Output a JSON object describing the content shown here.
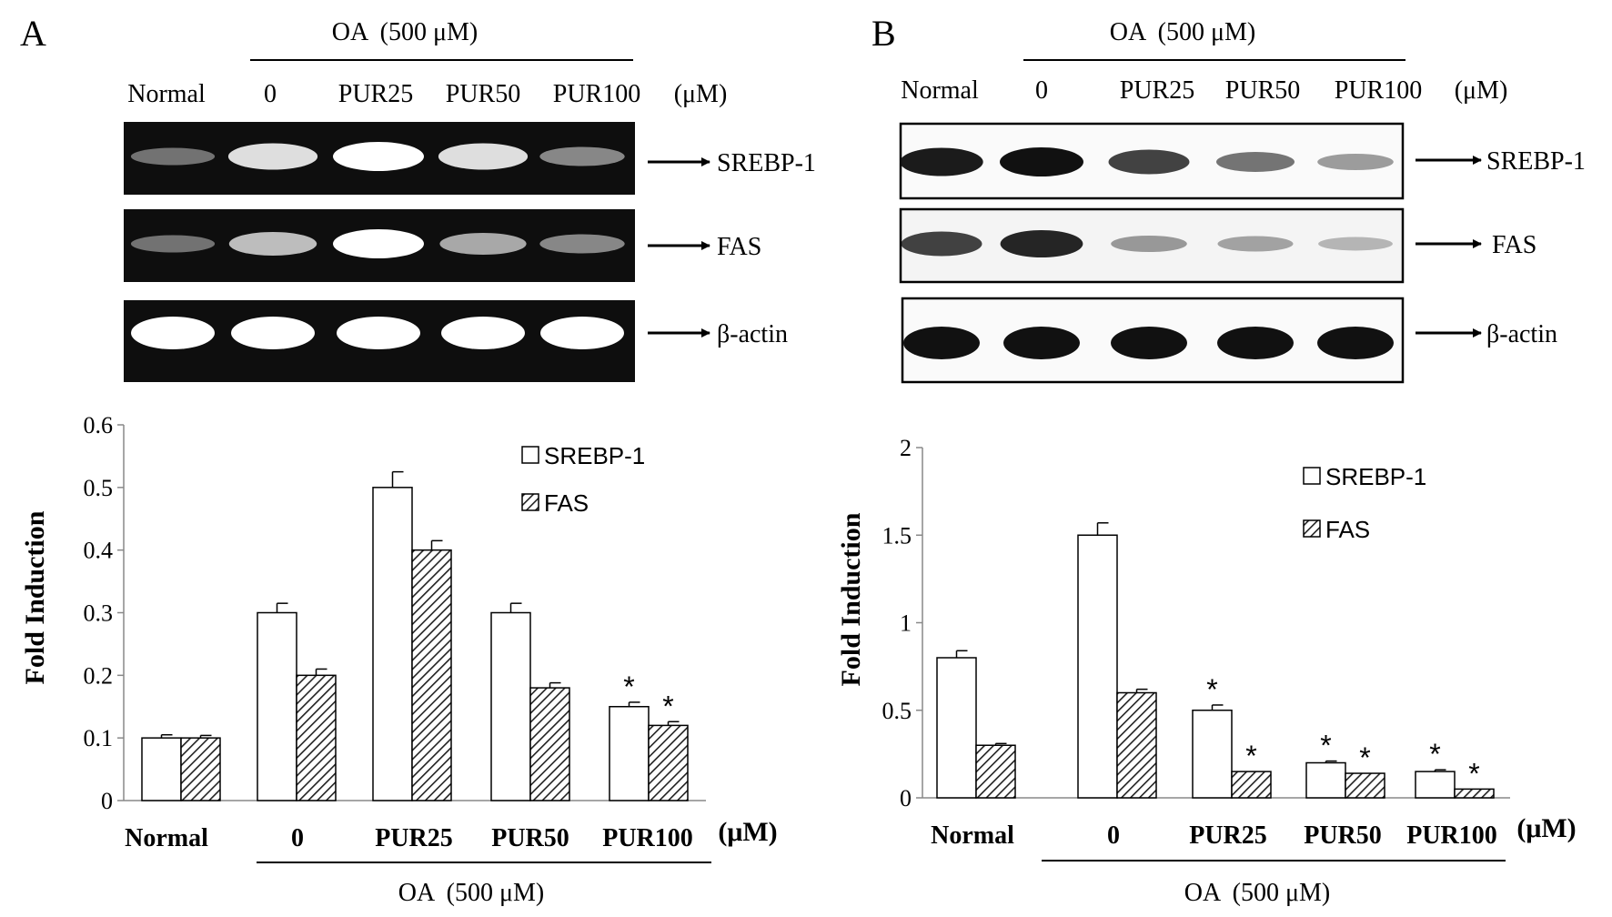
{
  "panels": [
    {
      "letter": "A",
      "treatment_label": "OA  (500 μM)",
      "blot_lane_labels": [
        "Normal",
        "0",
        "PUR25",
        "PUR50",
        "PUR100"
      ],
      "unit_label": "(μM)",
      "blot_bands": [
        "SREBP-1",
        "FAS",
        "β-actin"
      ],
      "band_intensity": {
        "SREBP-1": [
          0.35,
          0.85,
          1.0,
          0.85,
          0.45
        ],
        "FAS": [
          0.35,
          0.7,
          1.0,
          0.6,
          0.45
        ],
        "β-actin": [
          1.0,
          1.0,
          1.0,
          1.0,
          1.0
        ]
      },
      "legend_items": [
        "SREBP-1",
        "FAS"
      ]
    },
    {
      "letter": "B",
      "treatment_label": "OA  (500 μM)",
      "blot_lane_labels": [
        "Normal",
        "0",
        "PUR25",
        "PUR50",
        "PUR100"
      ],
      "unit_label": "(μM)",
      "blot_bands": [
        "SREBP-1",
        "FAS",
        "β-actin"
      ],
      "band_intensity": {
        "SREBP-1": [
          0.95,
          1.0,
          0.75,
          0.5,
          0.3
        ],
        "FAS": [
          0.75,
          0.9,
          0.3,
          0.25,
          0.15
        ],
        "β-actin": [
          1.0,
          1.0,
          1.0,
          1.0,
          1.0
        ]
      },
      "legend_items": [
        "SREBP-1",
        "FAS"
      ]
    }
  ],
  "chart_data": [
    {
      "type": "bar",
      "panel": "A",
      "categories": [
        "Normal",
        "0",
        "PUR25",
        "PUR50",
        "PUR100"
      ],
      "series": [
        {
          "name": "SREBP-1",
          "values": [
            0.1,
            0.3,
            0.5,
            0.3,
            0.15
          ],
          "errors": [
            0.005,
            0.015,
            0.025,
            0.015,
            0.007
          ],
          "significant": [
            false,
            false,
            false,
            false,
            true
          ],
          "fill": "#ffffff"
        },
        {
          "name": "FAS",
          "values": [
            0.1,
            0.2,
            0.4,
            0.18,
            0.12
          ],
          "errors": [
            0.004,
            0.01,
            0.015,
            0.008,
            0.006
          ],
          "significant": [
            false,
            false,
            false,
            false,
            true
          ],
          "fill": "hatch"
        }
      ],
      "ylabel": "Fold Induction",
      "xlabel": "OA  (500 μM)",
      "unit": "(μM)",
      "ylim": [
        0,
        0.6
      ],
      "yticks": [
        "0",
        "0.1",
        "0.2",
        "0.3",
        "0.4",
        "0.5",
        "0.6"
      ],
      "significance_marker": "*",
      "grid": false,
      "legend_position": "top-right"
    },
    {
      "type": "bar",
      "panel": "B",
      "categories": [
        "Normal",
        "0",
        "PUR25",
        "PUR50",
        "PUR100"
      ],
      "series": [
        {
          "name": "SREBP-1",
          "values": [
            0.8,
            1.5,
            0.5,
            0.2,
            0.15
          ],
          "errors": [
            0.04,
            0.07,
            0.03,
            0.01,
            0.01
          ],
          "significant": [
            false,
            false,
            true,
            true,
            true
          ],
          "fill": "#ffffff"
        },
        {
          "name": "FAS",
          "values": [
            0.3,
            0.6,
            0.15,
            0.14,
            0.05
          ],
          "errors": [
            0.01,
            0.02,
            0.0,
            0.0,
            0.0
          ],
          "significant": [
            false,
            false,
            true,
            true,
            true
          ],
          "fill": "hatch"
        }
      ],
      "ylabel": "Fold Induction",
      "xlabel": "OA  (500 μM)",
      "unit": "(μM)",
      "ylim": [
        0,
        2
      ],
      "yticks": [
        "0",
        "0.5",
        "1",
        "1.5",
        "2"
      ],
      "significance_marker": "*",
      "grid": false,
      "legend_position": "top-right"
    }
  ]
}
